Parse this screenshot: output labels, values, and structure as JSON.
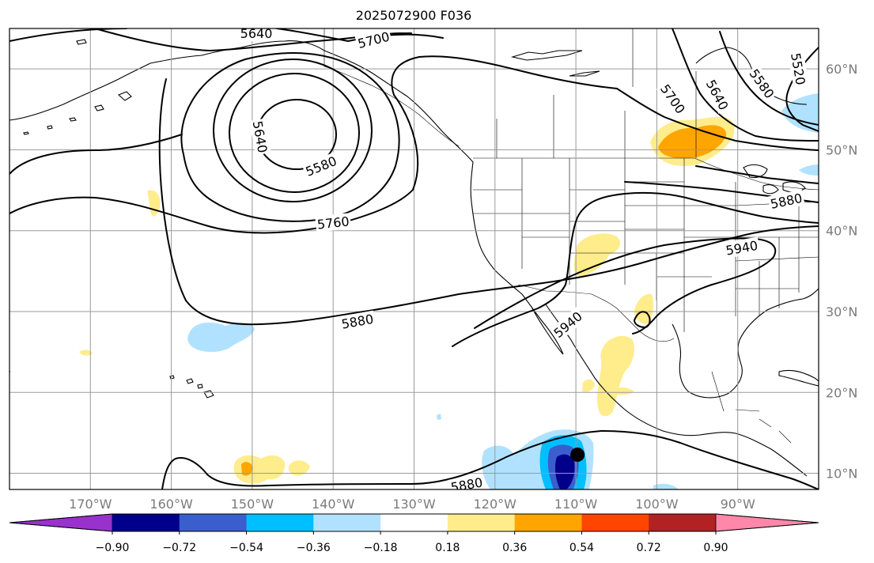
{
  "title": "2025072900 F036",
  "map": {
    "projection": "PlateCarree",
    "lon_range": [
      -180,
      -80
    ],
    "lat_range": [
      8,
      65
    ],
    "gridlines": true,
    "lon_ticks": [
      {
        "value": -170,
        "label": "170°W"
      },
      {
        "value": -160,
        "label": "160°W"
      },
      {
        "value": -150,
        "label": "150°W"
      },
      {
        "value": -140,
        "label": "140°W"
      },
      {
        "value": -130,
        "label": "130°W"
      },
      {
        "value": -120,
        "label": "120°W"
      },
      {
        "value": -110,
        "label": "110°W"
      },
      {
        "value": -100,
        "label": "100°W"
      },
      {
        "value": -90,
        "label": "90°W"
      }
    ],
    "lat_ticks": [
      {
        "value": 10,
        "label": "10°N"
      },
      {
        "value": 20,
        "label": "20°N"
      },
      {
        "value": 30,
        "label": "30°N"
      },
      {
        "value": 40,
        "label": "40°N"
      },
      {
        "value": 50,
        "label": "50°N"
      },
      {
        "value": 60,
        "label": "60°N"
      }
    ]
  },
  "contours": {
    "color": "#000000",
    "labels": [
      {
        "text": "5640",
        "lon": -149.5,
        "lat": 64.4,
        "angle": 0
      },
      {
        "text": "5700",
        "lon": -135,
        "lat": 63.6,
        "angle": -14
      },
      {
        "text": "5640",
        "lon": -149,
        "lat": 51.6,
        "angle": 80
      },
      {
        "text": "5580",
        "lon": -141.5,
        "lat": 48,
        "angle": -22
      },
      {
        "text": "5760",
        "lon": -140,
        "lat": 41,
        "angle": -6
      },
      {
        "text": "5880",
        "lon": -137,
        "lat": 28.8,
        "angle": -10
      },
      {
        "text": "5940",
        "lon": -111,
        "lat": 28.4,
        "angle": -40
      },
      {
        "text": "5940",
        "lon": -89.5,
        "lat": 37.9,
        "angle": -10
      },
      {
        "text": "5880",
        "lon": -123.5,
        "lat": 8.6,
        "angle": -10
      },
      {
        "text": "5700",
        "lon": -98,
        "lat": 56.3,
        "angle": 55
      },
      {
        "text": "5640",
        "lon": -92.5,
        "lat": 56.8,
        "angle": 62
      },
      {
        "text": "5580",
        "lon": -87,
        "lat": 58.2,
        "angle": 55
      },
      {
        "text": "5520",
        "lon": -82.5,
        "lat": 60,
        "angle": 80
      },
      {
        "text": "5880",
        "lon": -84,
        "lat": 43.7,
        "angle": -12
      }
    ]
  },
  "colorbar": {
    "colors": [
      "#9932cc",
      "#00008b",
      "#3a5fcd",
      "#00bfff",
      "#b0e2ff",
      "#ffffff",
      "#ffec8b",
      "#ffa500",
      "#ff4500",
      "#b22222",
      "#ff88aa"
    ],
    "tick_labels": [
      "−0.90",
      "−0.72",
      "−0.54",
      "−0.36",
      "−0.18",
      "0.18",
      "0.36",
      "0.54",
      "0.72",
      "0.90"
    ]
  },
  "marker": {
    "lon": -109.8,
    "lat": 12.3,
    "color": "#000000"
  }
}
